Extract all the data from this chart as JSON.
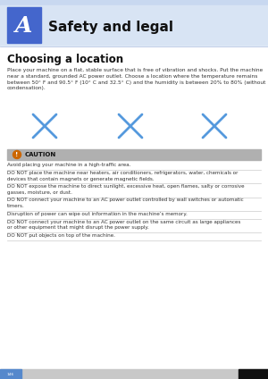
{
  "title": "Safety and legal",
  "chapter_letter": "A",
  "section_title": "Choosing a location",
  "body_text": "Place your machine on a flat, stable surface that is free of vibration and shocks. Put the machine\nnear a standard, grounded AC power outlet. Choose a location where the temperature remains\nbetween 50° F and 90.5° F (10° C and 32.5° C) and the humidity is between 20% to 80% (without\ncondensation).",
  "caution_label": "CAUTION",
  "caution_items": [
    "Avoid placing your machine in a high-traffic area.",
    "DO NOT place the machine near heaters, air conditioners, refrigerators, water, chemicals or\ndevices that contain magnets or generate magnetic fields.",
    "DO NOT expose the machine to direct sunlight, excessive heat, open flames, salty or corrosive\ngasses, moisture, or dust.",
    "DO NOT connect your machine to an AC power outlet controlled by wall switches or automatic\ntimers.",
    "Disruption of power can wipe out information in the machine’s memory.",
    "DO NOT connect your machine to an AC power outlet on the same circuit as large appliances\nor other equipment that might disrupt the power supply.",
    "DO NOT put objects on top of the machine."
  ],
  "header_top_color": "#c8d8f0",
  "header_bg": "#d8e4f4",
  "chapter_box_bg": "#4466cc",
  "chapter_box_dark": "#2244aa",
  "title_color": "#111111",
  "caution_bar_bg": "#b0b0b0",
  "caution_icon_bg": "#cc6600",
  "page_number": "146",
  "bottom_bar_color": "#5588cc",
  "bottom_right_color": "#111111",
  "sep_color": "#cccccc",
  "bg_color": "#ffffff",
  "text_color": "#333333"
}
